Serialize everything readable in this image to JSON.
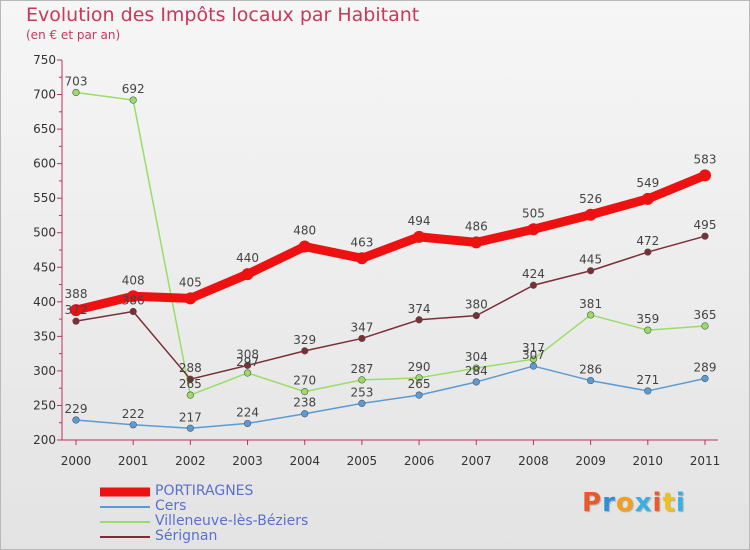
{
  "header": {
    "title": "Evolution des Impôts locaux par Habitant",
    "subtitle": "(en € et par an)"
  },
  "logo": {
    "text": "Proxiti",
    "colors": [
      "#e85a2a",
      "#2f8fd8",
      "#f0a020",
      "#3bb0e0",
      "#e85a2a",
      "#f0c020",
      "#3bb0e0"
    ]
  },
  "chart_data": {
    "type": "line",
    "title": "Evolution des Impôts locaux par Habitant",
    "subtitle": "(en € et par an)",
    "xlabel": "",
    "ylabel": "",
    "x": [
      "2000",
      "2001",
      "2002",
      "2003",
      "2004",
      "2005",
      "2006",
      "2007",
      "2008",
      "2009",
      "2010",
      "2011"
    ],
    "ylim": [
      200,
      750
    ],
    "yticks": [
      200,
      250,
      300,
      350,
      400,
      450,
      500,
      550,
      600,
      650,
      700,
      750
    ],
    "grid": false,
    "legend_position": "bottom-left",
    "series": [
      {
        "name": "PORTIRAGNES",
        "color": "#ee1111",
        "values": [
          388,
          408,
          405,
          440,
          480,
          463,
          494,
          486,
          505,
          526,
          549,
          583
        ],
        "bold": true
      },
      {
        "name": "Cers",
        "color": "#5b9bd5",
        "values": [
          229,
          222,
          217,
          224,
          238,
          253,
          265,
          284,
          307,
          286,
          271,
          289
        ]
      },
      {
        "name": "Villeneuve-lès-Béziers",
        "color": "#99dd66",
        "values": [
          703,
          692,
          265,
          297,
          270,
          287,
          290,
          304,
          317,
          381,
          359,
          365
        ]
      },
      {
        "name": "Sérignan",
        "color": "#7a2f35",
        "values": [
          372,
          386,
          288,
          308,
          329,
          347,
          374,
          380,
          424,
          445,
          472,
          495
        ]
      }
    ]
  }
}
